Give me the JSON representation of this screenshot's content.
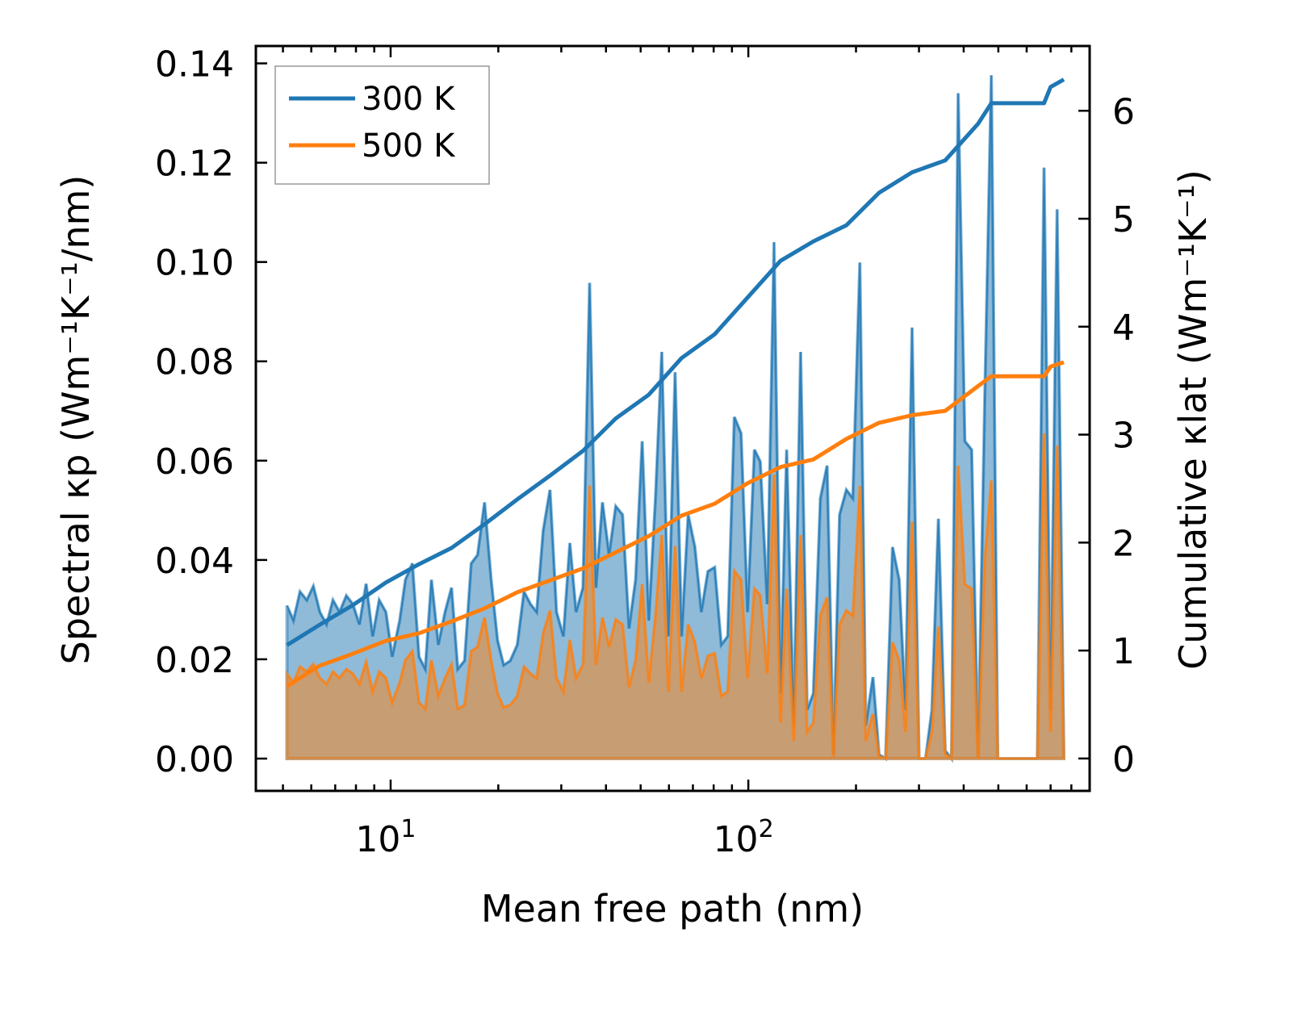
{
  "chart_data": {
    "type": "line",
    "xlabel": "Mean free path (nm)",
    "ylabel_left": "Spectral κp (Wm⁻¹K⁻¹/nm)",
    "ylabel_right": "Cumulative κlat (Wm⁻¹K⁻¹)",
    "xscale": "log",
    "xlim": [
      4.2,
      900
    ],
    "ylim_left": [
      -0.0065,
      0.1435
    ],
    "ylim_right": [
      -0.3,
      6.6
    ],
    "x_ticks": [
      {
        "value": 10,
        "base": "10",
        "exp": "1"
      },
      {
        "value": 100,
        "base": "10",
        "exp": "2"
      }
    ],
    "y_left_ticks": [
      "0.00",
      "0.02",
      "0.04",
      "0.06",
      "0.08",
      "0.10",
      "0.12",
      "0.14"
    ],
    "y_right_ticks": [
      "0",
      "1",
      "2",
      "3",
      "4",
      "5",
      "6"
    ],
    "legend": {
      "placement": "top-left",
      "entries": [
        "300 K",
        "500 K"
      ]
    },
    "colors": {
      "300 K": "#1f77b4",
      "500 K": "#ff7f0e"
    },
    "spectral_x": [
      5.13,
      5.35,
      5.58,
      5.83,
      6.08,
      6.34,
      6.62,
      6.9,
      7.2,
      7.52,
      7.84,
      8.18,
      8.54,
      8.91,
      9.29,
      9.7,
      10.1,
      10.6,
      11.0,
      11.5,
      12.0,
      12.5,
      13.0,
      13.6,
      14.2,
      14.8,
      15.4,
      16.1,
      16.8,
      17.5,
      18.3,
      19.1,
      19.9,
      20.7,
      21.6,
      22.6,
      23.6,
      24.6,
      25.6,
      26.7,
      27.9,
      29.1,
      30.4,
      31.7,
      33.0,
      34.5,
      36.0,
      37.5,
      39.1,
      40.8,
      42.6,
      44.5,
      46.4,
      48.4,
      50.5,
      52.7,
      55.0,
      57.3,
      59.8,
      62.4,
      65.1,
      67.9,
      70.9,
      73.9,
      77.1,
      80.5,
      84.0,
      87.6,
      91.4,
      95.4,
      99.5,
      104,
      108,
      113,
      118,
      123,
      128,
      134,
      140,
      146,
      152,
      159,
      166,
      173,
      180,
      188,
      196,
      205,
      213,
      223,
      232,
      242,
      253,
      264,
      275,
      287,
      300,
      313,
      326,
      340,
      355,
      370,
      386,
      403,
      421,
      439,
      458,
      478,
      498,
      520,
      543,
      566,
      591,
      616,
      643,
      671,
      700,
      730,
      762
    ],
    "series": [
      {
        "name": "300 K",
        "spectral": [
          0.0308,
          0.0278,
          0.0336,
          0.0319,
          0.0347,
          0.0295,
          0.027,
          0.0319,
          0.0295,
          0.0328,
          0.0311,
          0.027,
          0.0352,
          0.0246,
          0.0319,
          0.0295,
          0.0205,
          0.0278,
          0.036,
          0.0393,
          0.0205,
          0.018,
          0.036,
          0.0229,
          0.0295,
          0.0344,
          0.018,
          0.0197,
          0.0393,
          0.041,
          0.0516,
          0.036,
          0.0238,
          0.0188,
          0.0197,
          0.0229,
          0.0336,
          0.0311,
          0.0295,
          0.0459,
          0.0541,
          0.0295,
          0.0246,
          0.0434,
          0.0295,
          0.0344,
          0.0958,
          0.0344,
          0.0516,
          0.041,
          0.0508,
          0.0491,
          0.0262,
          0.036,
          0.0639,
          0.0278,
          0.0524,
          0.0819,
          0.0246,
          0.0778,
          0.0246,
          0.0491,
          0.0426,
          0.0295,
          0.0377,
          0.0385,
          0.0229,
          0.0246,
          0.0688,
          0.0655,
          0.0295,
          0.0622,
          0.0598,
          0.0311,
          0.104,
          0.0131,
          0.0622,
          0.0066,
          0.0819,
          0.0098,
          0.0131,
          0.0524,
          0.059,
          0.0008,
          0.0491,
          0.0541,
          0.0524,
          0.0999,
          0.0066,
          0.0164,
          0.0008,
          0,
          0.0426,
          0.036,
          0.0098,
          0.0868,
          0,
          0,
          0.0098,
          0.0483,
          0.0016,
          0,
          0.134,
          0.0639,
          0.0622,
          0,
          0.072,
          0.1376,
          0,
          0,
          0,
          0,
          0,
          0,
          0,
          0.119,
          0.0098,
          0.1106,
          0
        ],
        "cumulative_x": [
          5.13,
          6.34,
          7.84,
          9.7,
          12.0,
          14.8,
          18.3,
          22.6,
          27.9,
          34.5,
          42.6,
          52.7,
          65.1,
          80.5,
          99.5,
          123,
          152,
          188,
          232,
          287,
          355,
          439,
          478,
          498,
          671,
          700,
          762
        ],
        "cumulative": [
          1.05,
          1.24,
          1.42,
          1.63,
          1.8,
          1.95,
          2.17,
          2.4,
          2.62,
          2.85,
          3.15,
          3.37,
          3.71,
          3.93,
          4.27,
          4.61,
          4.79,
          4.94,
          5.24,
          5.43,
          5.54,
          5.88,
          6.07,
          6.07,
          6.07,
          6.22,
          6.29
        ]
      },
      {
        "name": "500 K",
        "spectral": [
          0.017,
          0.0153,
          0.0185,
          0.0175,
          0.019,
          0.0162,
          0.015,
          0.0175,
          0.0162,
          0.018,
          0.0171,
          0.015,
          0.0194,
          0.0135,
          0.0175,
          0.0162,
          0.0113,
          0.0153,
          0.0198,
          0.0216,
          0.0113,
          0.01,
          0.0198,
          0.0126,
          0.0162,
          0.0189,
          0.01,
          0.0108,
          0.0216,
          0.0225,
          0.0284,
          0.0198,
          0.0131,
          0.0103,
          0.0108,
          0.0126,
          0.0185,
          0.0171,
          0.0162,
          0.0252,
          0.0298,
          0.0162,
          0.0135,
          0.0239,
          0.0162,
          0.0189,
          0.055,
          0.0189,
          0.0284,
          0.0225,
          0.028,
          0.027,
          0.0144,
          0.0198,
          0.0351,
          0.0153,
          0.0288,
          0.045,
          0.0135,
          0.0428,
          0.0135,
          0.027,
          0.0234,
          0.0162,
          0.0207,
          0.0212,
          0.0126,
          0.0135,
          0.0378,
          0.036,
          0.0162,
          0.0342,
          0.0329,
          0.0171,
          0.0572,
          0.0072,
          0.0342,
          0.0036,
          0.045,
          0.0054,
          0.0072,
          0.0288,
          0.0325,
          0.0004,
          0.027,
          0.0298,
          0.0288,
          0.0549,
          0.0036,
          0.009,
          0.0004,
          0,
          0.0234,
          0.0198,
          0.0054,
          0.0477,
          0,
          0,
          0.0054,
          0.0266,
          0.0009,
          0,
          0.059,
          0.0351,
          0.0342,
          0,
          0.0396,
          0.056,
          0,
          0,
          0,
          0,
          0,
          0,
          0,
          0.0655,
          0.0054,
          0.063,
          0
        ],
        "cumulative_x": [
          5.13,
          6.34,
          7.84,
          9.7,
          12.0,
          14.8,
          18.3,
          22.6,
          27.9,
          34.5,
          42.6,
          52.7,
          65.1,
          80.5,
          99.5,
          123,
          152,
          188,
          232,
          287,
          355,
          439,
          478,
          498,
          671,
          700,
          762
        ],
        "cumulative": [
          0.67,
          0.86,
          0.97,
          1.09,
          1.16,
          1.27,
          1.39,
          1.54,
          1.65,
          1.76,
          1.91,
          2.06,
          2.25,
          2.36,
          2.55,
          2.7,
          2.77,
          2.96,
          3.11,
          3.18,
          3.22,
          3.45,
          3.54,
          3.54,
          3.54,
          3.63,
          3.67
        ]
      }
    ]
  }
}
